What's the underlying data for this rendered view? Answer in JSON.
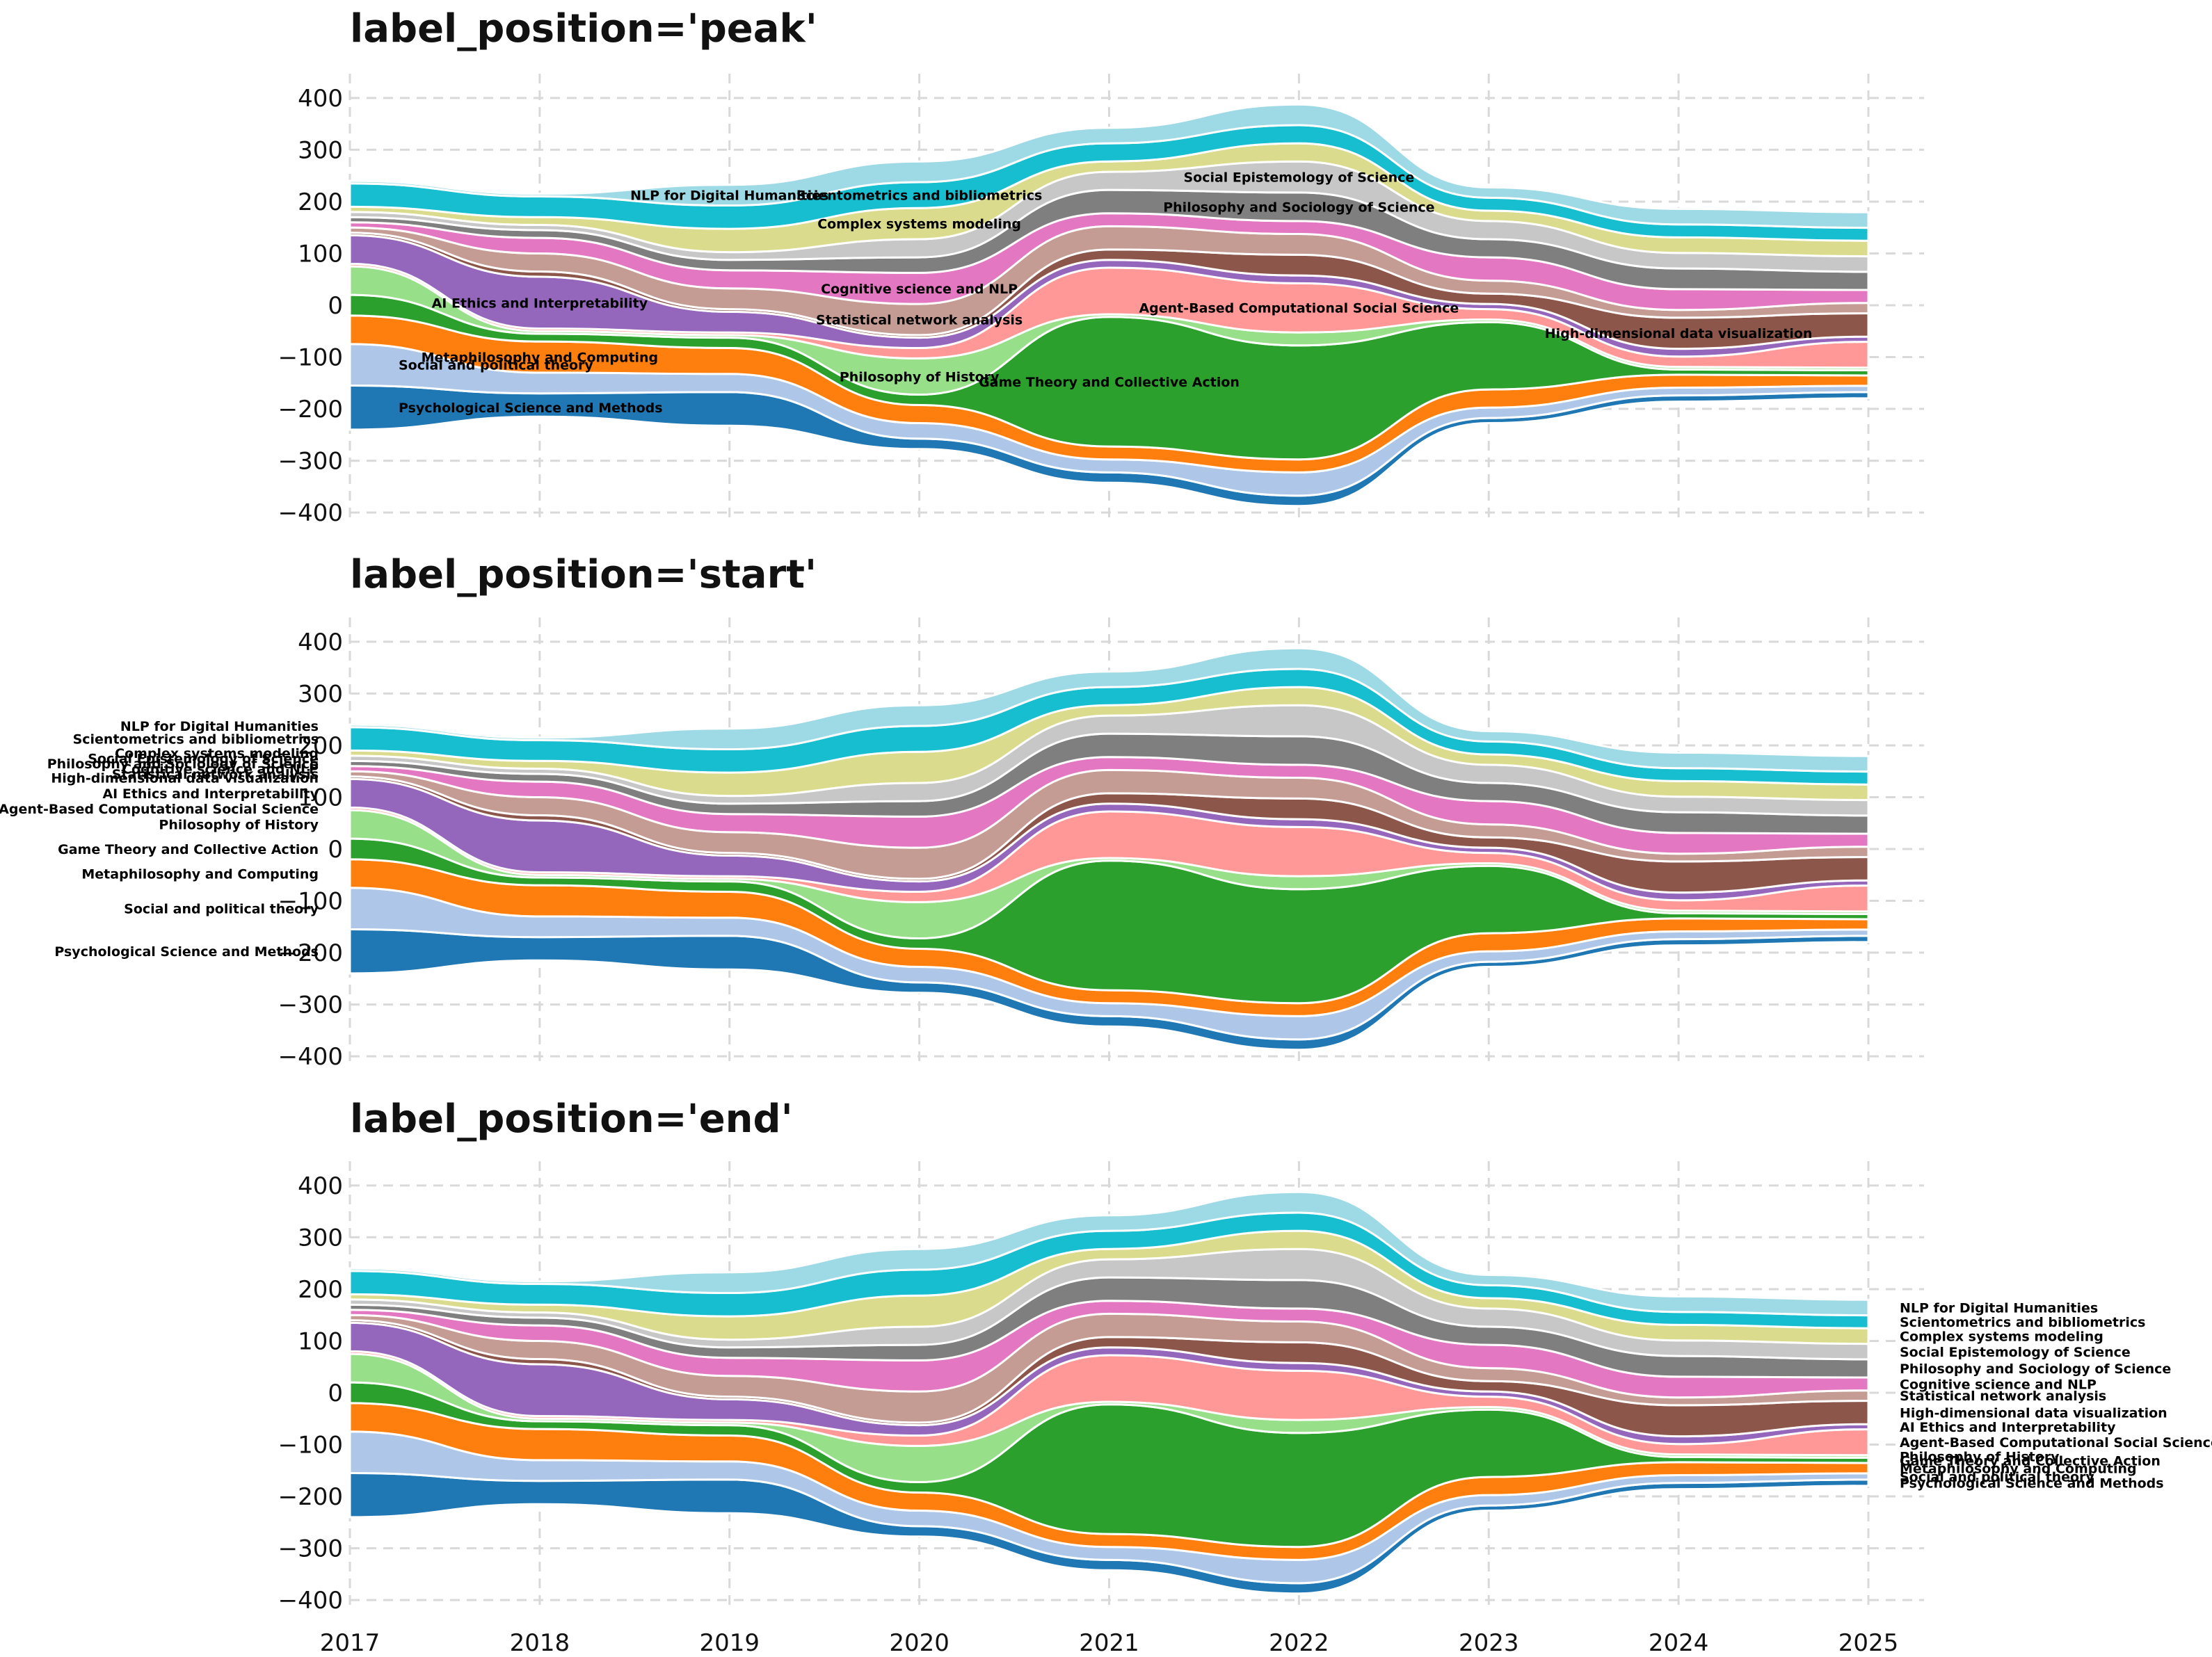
{
  "panels": [
    {
      "title": "label_position='peak'",
      "label_position": "peak"
    },
    {
      "title": "label_position='start'",
      "label_position": "start"
    },
    {
      "title": "label_position='end'",
      "label_position": "end"
    }
  ],
  "chart_data": {
    "type": "area",
    "subtype": "streamgraph (stacked area, symmetric baseline)",
    "x": [
      2017,
      2018,
      2019,
      2020,
      2021,
      2022,
      2023,
      2024,
      2025
    ],
    "ylim": [
      -420,
      420
    ],
    "yticks": [
      400,
      300,
      200,
      100,
      0,
      -100,
      -200,
      -300,
      -400
    ],
    "ytick_labels": [
      "400",
      "300",
      "200",
      "100",
      "0",
      "−100",
      "−200",
      "−300",
      "−400"
    ],
    "xtick_labels": [
      "2017",
      "2018",
      "2019",
      "2020",
      "2021",
      "2022",
      "2023",
      "2024",
      "2025"
    ],
    "grid": true,
    "series": [
      {
        "name": "Psychological Science and Methods",
        "color": "#1f77b4",
        "values": [
          85,
          45,
          65,
          20,
          20,
          20,
          10,
          12,
          12
        ]
      },
      {
        "name": "Social and political theory",
        "color": "#aec7e8",
        "values": [
          80,
          40,
          35,
          30,
          25,
          45,
          20,
          15,
          12
        ]
      },
      {
        "name": "Metaphilosophy and Computing",
        "color": "#ff7f0e",
        "values": [
          55,
          60,
          50,
          35,
          25,
          25,
          35,
          25,
          20
        ]
      },
      {
        "name": "Game Theory and Collective Action",
        "color": "#2ca02c",
        "values": [
          40,
          15,
          20,
          20,
          250,
          220,
          130,
          10,
          10
        ]
      },
      {
        "name": "Philosophy of History",
        "color": "#98df8a",
        "values": [
          55,
          5,
          5,
          70,
          5,
          25,
          5,
          5,
          5
        ]
      },
      {
        "name": "Agent-Based Computational Social Science",
        "color": "#ff9896",
        "values": [
          5,
          5,
          5,
          20,
          90,
          95,
          20,
          20,
          50
        ]
      },
      {
        "name": "AI Ethics and Interpretability",
        "color": "#9467bd",
        "values": [
          55,
          100,
          40,
          20,
          15,
          15,
          10,
          15,
          10
        ]
      },
      {
        "name": "High-dimensional data visualization",
        "color": "#8c564b",
        "values": [
          5,
          10,
          5,
          5,
          20,
          40,
          20,
          60,
          45
        ]
      },
      {
        "name": "Statistical network analysis",
        "color": "#c49c94",
        "values": [
          10,
          35,
          40,
          60,
          45,
          40,
          25,
          15,
          20
        ]
      },
      {
        "name": "Cognitive science and NLP",
        "color": "#e377c2",
        "values": [
          10,
          30,
          35,
          60,
          25,
          25,
          45,
          40,
          25
        ]
      },
      {
        "name": "Philosophy and Sociology of Science",
        "color": "#7f7f7f",
        "values": [
          10,
          15,
          20,
          30,
          45,
          55,
          35,
          40,
          35
        ]
      },
      {
        "name": "Social Epistemology of Science",
        "color": "#c7c7c7",
        "values": [
          10,
          10,
          15,
          35,
          35,
          60,
          35,
          30,
          30
        ]
      },
      {
        "name": "Complex systems modeling",
        "color": "#dbdb8d",
        "values": [
          10,
          15,
          45,
          60,
          20,
          35,
          20,
          30,
          30
        ]
      },
      {
        "name": "Scientometrics and bibliometrics",
        "color": "#17becf",
        "values": [
          45,
          40,
          45,
          50,
          35,
          35,
          25,
          25,
          25
        ]
      },
      {
        "name": "NLP for Digital Humanities",
        "color": "#9edae5",
        "values": [
          5,
          5,
          40,
          40,
          30,
          40,
          20,
          30,
          30
        ]
      }
    ]
  }
}
